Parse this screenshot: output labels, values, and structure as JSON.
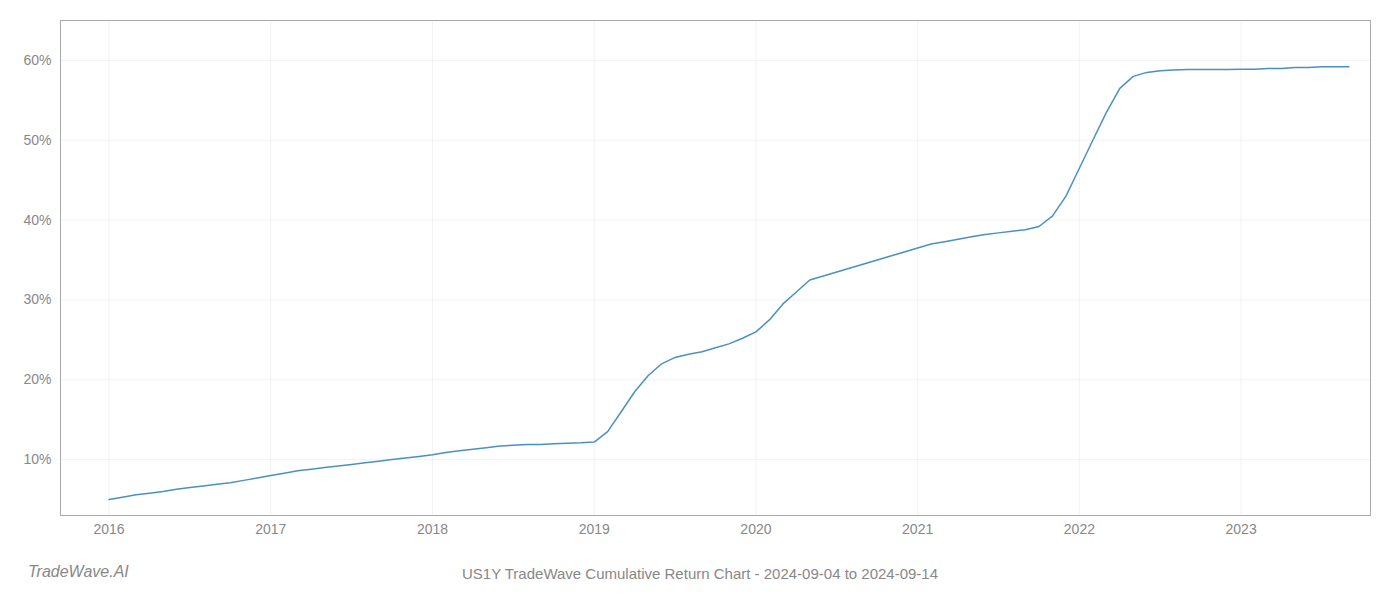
{
  "chart_data": {
    "type": "line",
    "title": "US1Y TradeWave Cumulative Return Chart - 2024-09-04 to 2024-09-14",
    "annotations": [
      "TradeWave.AI"
    ],
    "color": "#4a90c4",
    "grid": true,
    "x": [
      2016.0,
      2016.083,
      2016.167,
      2016.25,
      2016.333,
      2016.417,
      2016.5,
      2016.583,
      2016.667,
      2016.75,
      2016.833,
      2016.917,
      2017.0,
      2017.083,
      2017.167,
      2017.25,
      2017.333,
      2017.417,
      2017.5,
      2017.583,
      2017.667,
      2017.75,
      2017.833,
      2017.917,
      2018.0,
      2018.083,
      2018.167,
      2018.25,
      2018.333,
      2018.417,
      2018.5,
      2018.583,
      2018.667,
      2018.75,
      2018.833,
      2018.917,
      2019.0,
      2019.083,
      2019.167,
      2019.25,
      2019.333,
      2019.417,
      2019.5,
      2019.583,
      2019.667,
      2019.75,
      2019.833,
      2019.917,
      2020.0,
      2020.083,
      2020.167,
      2020.25,
      2020.333,
      2020.417,
      2020.5,
      2020.583,
      2020.667,
      2020.75,
      2020.833,
      2020.917,
      2021.0,
      2021.083,
      2021.167,
      2021.25,
      2021.333,
      2021.417,
      2021.5,
      2021.583,
      2021.667,
      2021.75,
      2021.833,
      2021.917,
      2022.0,
      2022.083,
      2022.167,
      2022.25,
      2022.333,
      2022.417,
      2022.5,
      2022.583,
      2022.667,
      2022.75,
      2022.833,
      2022.917,
      2023.0,
      2023.083,
      2023.167,
      2023.25,
      2023.333,
      2023.417,
      2023.5,
      2023.583,
      2023.667
    ],
    "values": [
      5.0,
      5.3,
      5.6,
      5.8,
      6.0,
      6.3,
      6.5,
      6.7,
      6.9,
      7.1,
      7.4,
      7.7,
      8.0,
      8.3,
      8.6,
      8.8,
      9.0,
      9.2,
      9.4,
      9.6,
      9.8,
      10.0,
      10.2,
      10.4,
      10.6,
      10.9,
      11.1,
      11.3,
      11.5,
      11.7,
      11.8,
      11.9,
      11.9,
      12.0,
      12.05,
      12.1,
      12.2,
      13.5,
      16.0,
      18.5,
      20.5,
      22.0,
      22.8,
      23.2,
      23.5,
      24.0,
      24.5,
      25.2,
      26.0,
      27.5,
      29.5,
      31.0,
      32.5,
      33.0,
      33.5,
      34.0,
      34.5,
      35.0,
      35.5,
      36.0,
      36.5,
      37.0,
      37.3,
      37.6,
      37.9,
      38.2,
      38.4,
      38.6,
      38.8,
      39.2,
      40.5,
      43.0,
      46.5,
      50.0,
      53.5,
      56.5,
      58.0,
      58.5,
      58.7,
      58.8,
      58.85,
      58.85,
      58.85,
      58.85,
      58.9,
      58.9,
      59.0,
      59.0,
      59.1,
      59.1,
      59.2,
      59.2,
      59.2
    ],
    "xlim": [
      2015.7,
      2023.8
    ],
    "xticks": [
      2016,
      2017,
      2018,
      2019,
      2020,
      2021,
      2022,
      2023
    ],
    "ylim": [
      3,
      65
    ],
    "yticks": [
      {
        "value": 10,
        "label": "10%"
      },
      {
        "value": 20,
        "label": "20%"
      },
      {
        "value": 30,
        "label": "30%"
      },
      {
        "value": 40,
        "label": "40%"
      },
      {
        "value": 50,
        "label": "50%"
      },
      {
        "value": 60,
        "label": "60%"
      }
    ]
  }
}
